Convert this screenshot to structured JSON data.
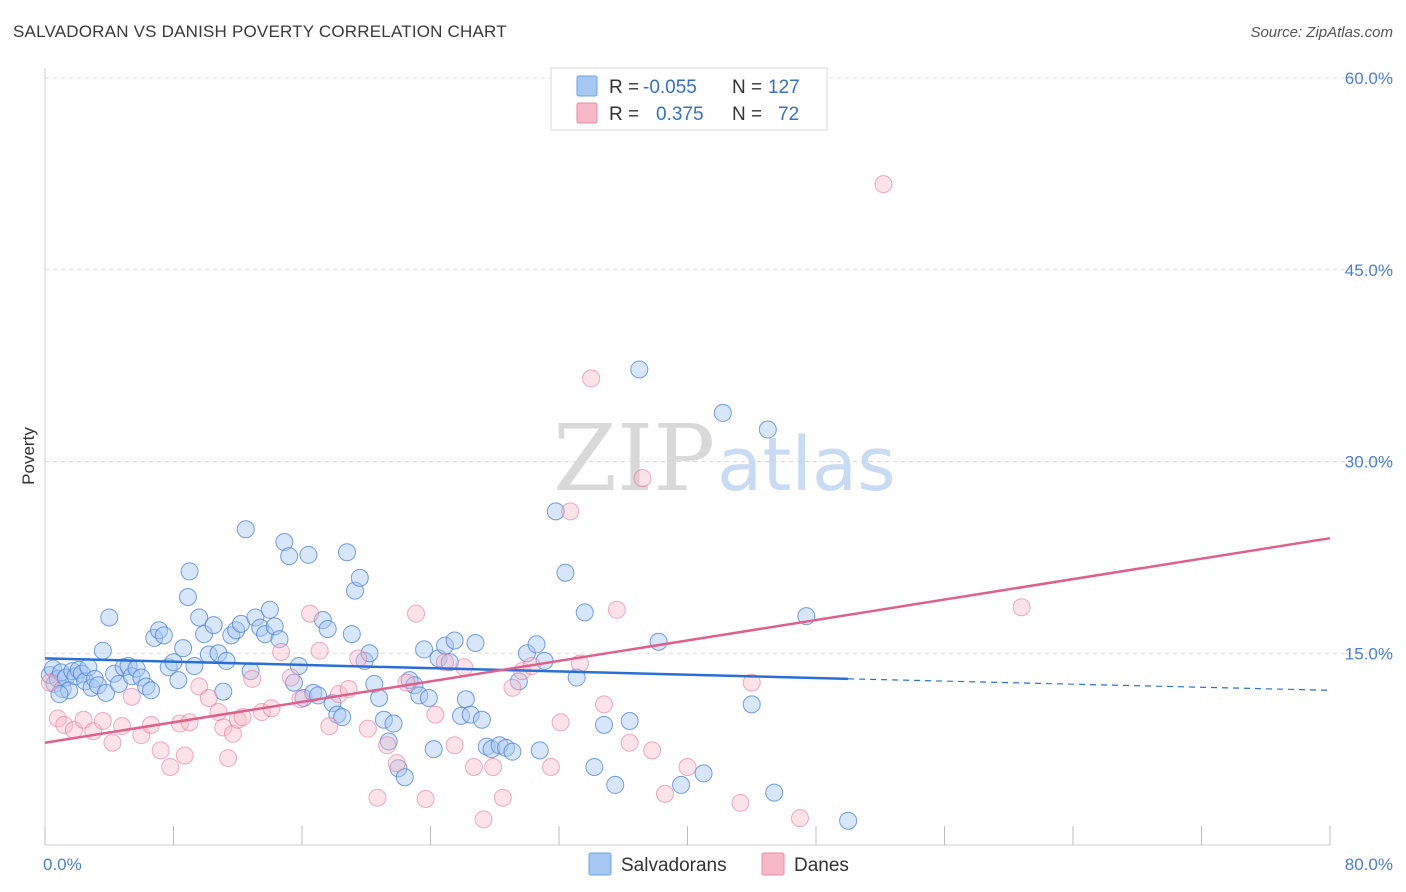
{
  "header": {
    "title": "SALVADORAN VS DANISH POVERTY CORRELATION CHART",
    "source": "Source: ZipAtlas.com"
  },
  "watermark": {
    "zip": "ZIP",
    "atlas": "atlas"
  },
  "legend": {
    "rows": [
      {
        "r_label": "R =",
        "r_value": "-0.055",
        "n_label": "N =",
        "n_value": "127",
        "color": "#a8c8f4"
      },
      {
        "r_label": "R =",
        "r_value": "0.375",
        "n_label": "N =",
        "n_value": "72",
        "color": "#f7b8c8"
      }
    ]
  },
  "bottom_legend": {
    "salvadorans": "Salvadorans",
    "danes": "Danes"
  },
  "chart_data": {
    "type": "scatter",
    "title": "SALVADORAN VS DANISH POVERTY CORRELATION CHART",
    "xlabel": "",
    "ylabel": "Poverty",
    "xlim": [
      0,
      80
    ],
    "ylim": [
      0,
      60
    ],
    "x_tick_labels": [
      "0.0%",
      "80.0%"
    ],
    "y_ticks": [
      15,
      30,
      45,
      60
    ],
    "y_tick_labels": [
      "15.0%",
      "30.0%",
      "45.0%",
      "60.0%"
    ],
    "grid": true,
    "legend_position": "top-center",
    "colors": {
      "salvadorans": "#4a7fd4",
      "salvadorans_fill": "#a8c8f4",
      "danes": "#e36b93",
      "danes_fill": "#f7b8c8"
    },
    "series": [
      {
        "name": "Salvadorans",
        "trend": {
          "x": [
            0,
            50
          ],
          "y": [
            14.6,
            13.0
          ],
          "dashed_to": [
            80,
            12.1
          ]
        },
        "points": [
          [
            0.3,
            13.3
          ],
          [
            0.5,
            13.8
          ],
          [
            0.6,
            12.6
          ],
          [
            0.8,
            13.0
          ],
          [
            1.0,
            13.5
          ],
          [
            1.1,
            12.2
          ],
          [
            1.3,
            13.1
          ],
          [
            1.5,
            12.1
          ],
          [
            1.7,
            13.6
          ],
          [
            1.9,
            13.2
          ],
          [
            2.1,
            13.7
          ],
          [
            2.3,
            13.4
          ],
          [
            2.5,
            12.8
          ],
          [
            2.7,
            13.9
          ],
          [
            2.9,
            12.3
          ],
          [
            3.1,
            13.0
          ],
          [
            3.3,
            12.5
          ],
          [
            3.6,
            15.2
          ],
          [
            3.8,
            11.9
          ],
          [
            4.0,
            17.8
          ],
          [
            4.3,
            13.4
          ],
          [
            4.6,
            12.6
          ],
          [
            4.9,
            13.9
          ],
          [
            5.2,
            14.0
          ],
          [
            5.4,
            13.2
          ],
          [
            5.7,
            13.8
          ],
          [
            6.0,
            13.1
          ],
          [
            6.3,
            12.4
          ],
          [
            6.6,
            12.1
          ],
          [
            6.8,
            16.2
          ],
          [
            7.1,
            16.8
          ],
          [
            7.4,
            16.4
          ],
          [
            7.7,
            13.9
          ],
          [
            8.0,
            14.3
          ],
          [
            8.3,
            12.9
          ],
          [
            8.6,
            15.4
          ],
          [
            8.9,
            19.4
          ],
          [
            9.0,
            21.4
          ],
          [
            9.3,
            14.0
          ],
          [
            9.6,
            17.8
          ],
          [
            9.9,
            16.5
          ],
          [
            10.2,
            14.9
          ],
          [
            10.5,
            17.2
          ],
          [
            10.8,
            15.0
          ],
          [
            11.1,
            12.0
          ],
          [
            11.3,
            14.4
          ],
          [
            11.6,
            16.4
          ],
          [
            11.9,
            16.8
          ],
          [
            12.2,
            17.3
          ],
          [
            12.5,
            24.7
          ],
          [
            12.8,
            13.6
          ],
          [
            13.1,
            17.8
          ],
          [
            13.4,
            17.0
          ],
          [
            13.7,
            16.5
          ],
          [
            14.0,
            18.4
          ],
          [
            14.3,
            17.1
          ],
          [
            14.6,
            16.1
          ],
          [
            14.9,
            23.7
          ],
          [
            15.2,
            22.6
          ],
          [
            15.5,
            12.7
          ],
          [
            15.8,
            14.0
          ],
          [
            16.1,
            11.5
          ],
          [
            16.4,
            22.7
          ],
          [
            16.7,
            11.9
          ],
          [
            17.0,
            11.7
          ],
          [
            17.3,
            17.6
          ],
          [
            17.6,
            16.9
          ],
          [
            17.9,
            11.1
          ],
          [
            18.2,
            10.2
          ],
          [
            18.5,
            10.0
          ],
          [
            18.8,
            22.9
          ],
          [
            19.1,
            16.5
          ],
          [
            19.3,
            19.9
          ],
          [
            19.6,
            20.9
          ],
          [
            19.9,
            14.4
          ],
          [
            20.2,
            15.0
          ],
          [
            20.5,
            12.6
          ],
          [
            20.8,
            11.5
          ],
          [
            21.1,
            9.8
          ],
          [
            21.4,
            8.1
          ],
          [
            21.7,
            9.5
          ],
          [
            22.0,
            6.0
          ],
          [
            22.4,
            5.3
          ],
          [
            22.7,
            12.9
          ],
          [
            23.0,
            12.5
          ],
          [
            23.3,
            11.7
          ],
          [
            23.6,
            15.3
          ],
          [
            23.9,
            11.5
          ],
          [
            24.2,
            7.5
          ],
          [
            24.5,
            14.6
          ],
          [
            24.9,
            15.6
          ],
          [
            25.2,
            14.3
          ],
          [
            25.5,
            16.0
          ],
          [
            25.9,
            10.1
          ],
          [
            26.2,
            11.4
          ],
          [
            26.5,
            10.2
          ],
          [
            26.8,
            15.8
          ],
          [
            27.2,
            9.8
          ],
          [
            27.5,
            7.7
          ],
          [
            27.8,
            7.5
          ],
          [
            28.3,
            7.8
          ],
          [
            28.7,
            7.6
          ],
          [
            29.1,
            7.3
          ],
          [
            29.5,
            12.8
          ],
          [
            30.0,
            15.0
          ],
          [
            30.6,
            15.7
          ],
          [
            31.1,
            14.4
          ],
          [
            30.8,
            7.4
          ],
          [
            31.8,
            26.1
          ],
          [
            32.4,
            21.3
          ],
          [
            33.1,
            13.1
          ],
          [
            33.6,
            18.2
          ],
          [
            34.2,
            6.1
          ],
          [
            34.8,
            9.4
          ],
          [
            35.5,
            4.7
          ],
          [
            36.4,
            9.7
          ],
          [
            37.0,
            37.2
          ],
          [
            38.2,
            15.9
          ],
          [
            39.6,
            4.7
          ],
          [
            41.0,
            5.6
          ],
          [
            42.2,
            33.8
          ],
          [
            44.0,
            11.0
          ],
          [
            45.0,
            32.5
          ],
          [
            45.4,
            4.1
          ],
          [
            47.4,
            17.9
          ],
          [
            50.0,
            1.9
          ],
          [
            0.9,
            11.8
          ]
        ]
      },
      {
        "name": "Danes",
        "trend": {
          "x": [
            0,
            80
          ],
          "y": [
            8.0,
            24.0
          ]
        },
        "points": [
          [
            0.3,
            12.7
          ],
          [
            0.8,
            9.9
          ],
          [
            1.2,
            9.4
          ],
          [
            1.8,
            9.0
          ],
          [
            2.4,
            9.8
          ],
          [
            3.0,
            8.9
          ],
          [
            3.6,
            9.7
          ],
          [
            4.2,
            8.0
          ],
          [
            4.8,
            9.3
          ],
          [
            5.4,
            11.6
          ],
          [
            6.0,
            8.6
          ],
          [
            6.6,
            9.4
          ],
          [
            7.2,
            7.4
          ],
          [
            7.8,
            6.1
          ],
          [
            8.4,
            9.5
          ],
          [
            8.7,
            7.0
          ],
          [
            9.0,
            9.6
          ],
          [
            9.6,
            12.4
          ],
          [
            10.2,
            11.5
          ],
          [
            10.8,
            10.4
          ],
          [
            11.1,
            9.2
          ],
          [
            11.4,
            6.8
          ],
          [
            11.7,
            8.7
          ],
          [
            12.0,
            9.8
          ],
          [
            12.3,
            10.0
          ],
          [
            12.9,
            13.0
          ],
          [
            13.5,
            10.4
          ],
          [
            14.1,
            10.7
          ],
          [
            14.7,
            15.1
          ],
          [
            15.3,
            13.1
          ],
          [
            15.9,
            11.4
          ],
          [
            16.5,
            18.1
          ],
          [
            17.1,
            15.2
          ],
          [
            17.7,
            9.3
          ],
          [
            18.3,
            11.8
          ],
          [
            18.9,
            12.2
          ],
          [
            19.5,
            14.6
          ],
          [
            20.1,
            9.1
          ],
          [
            20.7,
            3.7
          ],
          [
            21.3,
            7.8
          ],
          [
            21.9,
            6.4
          ],
          [
            22.5,
            12.7
          ],
          [
            23.1,
            18.1
          ],
          [
            23.7,
            3.6
          ],
          [
            24.3,
            10.2
          ],
          [
            24.9,
            14.3
          ],
          [
            25.5,
            7.8
          ],
          [
            26.1,
            13.9
          ],
          [
            26.7,
            6.1
          ],
          [
            27.3,
            2.0
          ],
          [
            27.9,
            6.1
          ],
          [
            28.5,
            3.7
          ],
          [
            29.1,
            12.3
          ],
          [
            29.7,
            13.6
          ],
          [
            30.3,
            14.0
          ],
          [
            31.5,
            6.1
          ],
          [
            32.1,
            9.6
          ],
          [
            32.7,
            26.1
          ],
          [
            33.3,
            14.2
          ],
          [
            34.0,
            36.5
          ],
          [
            34.8,
            11.0
          ],
          [
            35.6,
            18.4
          ],
          [
            36.4,
            8.0
          ],
          [
            37.2,
            28.7
          ],
          [
            37.8,
            7.4
          ],
          [
            38.6,
            4.0
          ],
          [
            40.0,
            6.1
          ],
          [
            43.3,
            3.3
          ],
          [
            44.0,
            12.7
          ],
          [
            47.0,
            2.1
          ],
          [
            52.2,
            51.7
          ],
          [
            60.8,
            18.6
          ]
        ]
      }
    ]
  }
}
